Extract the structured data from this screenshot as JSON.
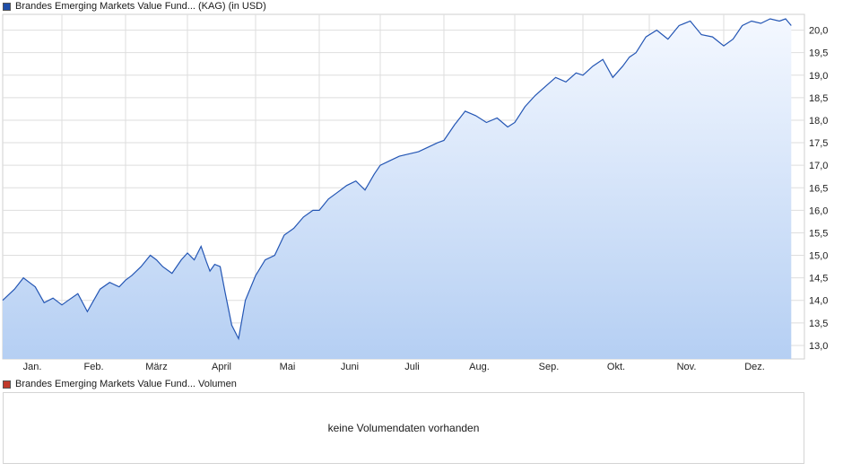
{
  "legend": {
    "price_label": "Brandes Emerging Markets Value Fund... (KAG) (in USD)",
    "price_color": "#1f4ea8",
    "volume_label": "Brandes Emerging Markets Value Fund... Volumen",
    "volume_color": "#c0392b"
  },
  "volume_panel": {
    "message": "keine Volumendaten vorhanden"
  },
  "chart_data": {
    "type": "area",
    "x_axis": {
      "tick_labels": [
        "Jan.",
        "Feb.",
        "März",
        "April",
        "Mai",
        "Juni",
        "Juli",
        "Aug.",
        "Sep.",
        "Okt.",
        "Nov.",
        "Dez."
      ]
    },
    "y_axis": {
      "position": "right",
      "ylim": [
        12.7,
        20.35
      ],
      "tick_values": [
        13.0,
        13.5,
        14.0,
        14.5,
        15.0,
        15.5,
        16.0,
        16.5,
        17.0,
        17.5,
        18.0,
        18.5,
        19.0,
        19.5,
        20.0
      ],
      "tick_labels": [
        "13,0",
        "13,5",
        "14,0",
        "14,5",
        "15,0",
        "15,5",
        "16,0",
        "16,5",
        "17,0",
        "17,5",
        "18,0",
        "18,5",
        "19,0",
        "19,5",
        "20,0"
      ]
    },
    "grid": true,
    "series": [
      {
        "line_color": "#2456b4",
        "fill_top": "#f4f8ff",
        "fill_bottom": "#b5cff3",
        "x": [
          0.0,
          0.2,
          0.35,
          0.45,
          0.55,
          0.7,
          0.85,
          1.0,
          1.1,
          1.25,
          1.4,
          1.5,
          1.6,
          1.75,
          1.9,
          2.0,
          2.1,
          2.25,
          2.4,
          2.5,
          2.6,
          2.75,
          2.9,
          3.0,
          3.1,
          3.2,
          3.28,
          3.33,
          3.4,
          3.48,
          3.55,
          3.65,
          3.75,
          3.85,
          4.0,
          4.15,
          4.3,
          4.45,
          4.6,
          4.75,
          4.9,
          5.0,
          5.15,
          5.3,
          5.45,
          5.6,
          5.75,
          5.9,
          6.0,
          6.15,
          6.3,
          6.45,
          6.6,
          6.75,
          6.9,
          7.0,
          7.15,
          7.3,
          7.45,
          7.6,
          7.75,
          7.9,
          8.0,
          8.15,
          8.3,
          8.45,
          8.6,
          8.75,
          8.9,
          9.0,
          9.15,
          9.3,
          9.45,
          9.6,
          9.7,
          9.8,
          9.95,
          10.1,
          10.25,
          10.4,
          10.55,
          10.7,
          10.85,
          11.0,
          11.15,
          11.3,
          11.45,
          11.6,
          11.75,
          11.9,
          12.0,
          12.1,
          12.2,
          12.3
        ],
        "y": [
          14.0,
          14.25,
          14.5,
          14.4,
          14.3,
          13.95,
          14.05,
          13.9,
          14.0,
          14.15,
          13.75,
          14.0,
          14.25,
          14.4,
          14.3,
          14.45,
          14.55,
          14.75,
          15.0,
          14.9,
          14.75,
          14.6,
          14.9,
          15.05,
          14.9,
          15.2,
          14.85,
          14.65,
          14.8,
          14.75,
          14.2,
          13.45,
          13.15,
          14.0,
          14.55,
          14.9,
          15.0,
          15.45,
          15.6,
          15.85,
          16.0,
          16.0,
          16.25,
          16.4,
          16.55,
          16.65,
          16.45,
          16.8,
          17.0,
          17.1,
          17.2,
          17.25,
          17.3,
          17.4,
          17.5,
          17.55,
          17.9,
          18.2,
          18.1,
          17.95,
          18.05,
          17.85,
          17.95,
          18.3,
          18.55,
          18.75,
          18.95,
          18.85,
          19.05,
          19.0,
          19.2,
          19.35,
          18.95,
          19.2,
          19.4,
          19.5,
          19.85,
          20.0,
          19.8,
          20.1,
          20.2,
          19.9,
          19.85,
          19.65,
          19.8,
          20.1,
          20.2,
          20.15,
          20.25,
          20.2,
          20.25,
          20.2,
          20.15,
          20.1
        ]
      }
    ]
  }
}
